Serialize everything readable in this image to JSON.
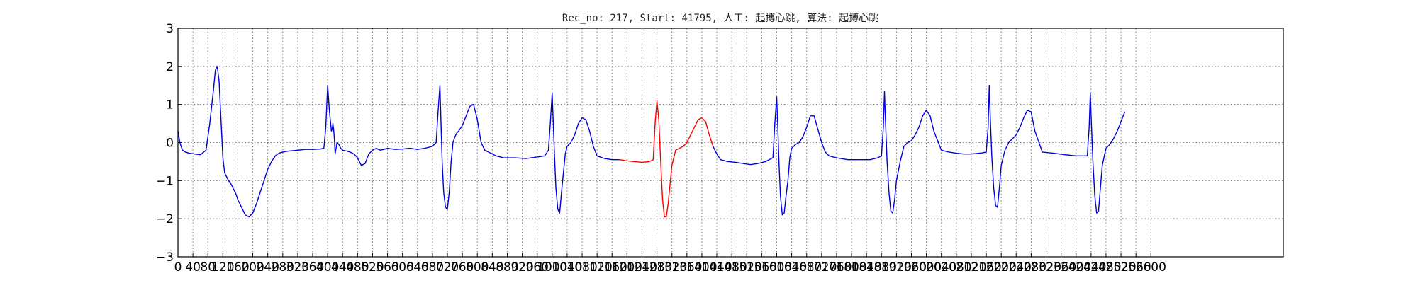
{
  "chart_data": {
    "type": "line",
    "title": "Rec_no: 217, Start: 41795, 人工: 起搏心跳, 算法: 起搏心跳",
    "xlabel": "",
    "ylabel": "",
    "xlim": [
      0,
      3000
    ],
    "ylim": [
      -3,
      3
    ],
    "x_ticks": [
      0,
      40,
      80,
      120,
      160,
      200,
      240,
      280,
      320,
      360,
      400,
      440,
      480,
      520,
      560,
      600,
      640,
      680,
      720,
      760,
      800,
      840,
      880,
      920,
      960,
      1000,
      1040,
      1080,
      1120,
      1160,
      1200,
      1240,
      1280,
      1320,
      1360,
      1400,
      1440,
      1480,
      1520,
      1560,
      1600,
      1640,
      1680,
      1720,
      1760,
      1800,
      1840,
      1880,
      1920,
      1960,
      2000,
      2040,
      2080,
      2120,
      2160,
      2200,
      2240,
      2280,
      2320,
      2360,
      2400,
      2440,
      2480,
      2520,
      2560,
      2600
    ],
    "y_ticks": [
      3,
      2,
      1,
      0,
      -1,
      -2,
      -3
    ],
    "grid": true,
    "series": [
      {
        "color": "#0000dd",
        "x": [
          0,
          5,
          12,
          20,
          30,
          45,
          60,
          75,
          85,
          95,
          100,
          105,
          110,
          115,
          120,
          125,
          130,
          135,
          140,
          145,
          150,
          155,
          160,
          170,
          180,
          190,
          200,
          210,
          220,
          230,
          240,
          250,
          260,
          270,
          280,
          290,
          300,
          320,
          340,
          360,
          380,
          390,
          395,
          400,
          405,
          410,
          412,
          414,
          416,
          418,
          420,
          425,
          430,
          435,
          440,
          450,
          460,
          470,
          480,
          490,
          500,
          510,
          520,
          530,
          540,
          550,
          560,
          580,
          600,
          620,
          640,
          660,
          680,
          690,
          695,
          700,
          703,
          706,
          710,
          715,
          720,
          725,
          730,
          735,
          740,
          745,
          750,
          760,
          770,
          780,
          790,
          800,
          810,
          820,
          830,
          840,
          850,
          870,
          900,
          930,
          960,
          980,
          990,
          995,
          1000,
          1003,
          1006,
          1010,
          1015,
          1020,
          1025,
          1030,
          1035,
          1040,
          1050,
          1060,
          1070,
          1080,
          1090,
          1100,
          1110,
          1120,
          1140,
          1160,
          1180
        ],
        "y": [
          0.3,
          0.0,
          -0.2,
          -0.25,
          -0.28,
          -0.3,
          -0.32,
          -0.2,
          0.5,
          1.4,
          1.9,
          2.0,
          1.6,
          0.6,
          -0.4,
          -0.8,
          -0.9,
          -1.0,
          -1.05,
          -1.15,
          -1.25,
          -1.35,
          -1.5,
          -1.7,
          -1.9,
          -1.95,
          -1.85,
          -1.6,
          -1.3,
          -1.0,
          -0.7,
          -0.5,
          -0.35,
          -0.28,
          -0.25,
          -0.23,
          -0.22,
          -0.2,
          -0.18,
          -0.18,
          -0.17,
          -0.15,
          0.4,
          1.5,
          0.8,
          0.3,
          0.35,
          0.5,
          0.35,
          0.1,
          -0.3,
          0.0,
          -0.05,
          -0.15,
          -0.2,
          -0.22,
          -0.25,
          -0.3,
          -0.4,
          -0.6,
          -0.55,
          -0.3,
          -0.2,
          -0.15,
          -0.2,
          -0.18,
          -0.15,
          -0.18,
          -0.17,
          -0.15,
          -0.18,
          -0.15,
          -0.1,
          0.0,
          0.8,
          1.5,
          0.5,
          -0.5,
          -1.3,
          -1.7,
          -1.75,
          -1.3,
          -0.5,
          0.0,
          0.15,
          0.25,
          0.3,
          0.45,
          0.7,
          0.95,
          1.0,
          0.6,
          0.0,
          -0.2,
          -0.25,
          -0.3,
          -0.35,
          -0.4,
          -0.4,
          -0.42,
          -0.38,
          -0.35,
          -0.2,
          0.5,
          1.3,
          0.5,
          -0.3,
          -1.2,
          -1.75,
          -1.85,
          -1.3,
          -0.8,
          -0.3,
          -0.1,
          0.0,
          0.2,
          0.5,
          0.65,
          0.6,
          0.3,
          -0.1,
          -0.35,
          -0.42,
          -0.45,
          -0.45
        ]
      },
      {
        "color": "#ff0000",
        "x": [
          1180,
          1200,
          1220,
          1240,
          1260,
          1270,
          1275,
          1280,
          1285,
          1290,
          1295,
          1300,
          1305,
          1310,
          1315,
          1320,
          1330,
          1340,
          1350,
          1360,
          1370,
          1380,
          1390,
          1400,
          1410,
          1420,
          1430
        ],
        "y": [
          -0.45,
          -0.48,
          -0.5,
          -0.52,
          -0.5,
          -0.45,
          0.5,
          1.1,
          0.6,
          -0.5,
          -1.5,
          -1.95,
          -1.95,
          -1.6,
          -1.1,
          -0.6,
          -0.2,
          -0.15,
          -0.1,
          0.0,
          0.2,
          0.4,
          0.6,
          0.65,
          0.55,
          0.2,
          -0.1
        ]
      },
      {
        "color": "#0000dd",
        "x": [
          1430,
          1440,
          1450,
          1470,
          1490,
          1510,
          1530,
          1550,
          1570,
          1590,
          1595,
          1600,
          1603,
          1606,
          1610,
          1615,
          1620,
          1625,
          1630,
          1635,
          1640,
          1650,
          1660,
          1670,
          1680,
          1690,
          1700,
          1710,
          1720,
          1730,
          1740,
          1760,
          1790,
          1820,
          1850,
          1870,
          1880,
          1885,
          1888,
          1891,
          1895,
          1900,
          1905,
          1910,
          1915,
          1920,
          1930,
          1940,
          1950,
          1960,
          1970,
          1980,
          1990,
          2000,
          2010,
          2020,
          2040,
          2060,
          2080,
          2100,
          2120,
          2150,
          2160,
          2165,
          2168,
          2171,
          2175,
          2180,
          2185,
          2190,
          2195,
          2200,
          2210,
          2220,
          2230,
          2240,
          2250,
          2260,
          2270,
          2280,
          2290,
          2310,
          2340,
          2370,
          2400,
          2420,
          2430,
          2435,
          2438,
          2441,
          2445,
          2450,
          2455,
          2460,
          2465,
          2470,
          2480,
          2490,
          2500,
          2510,
          2520,
          2530
        ],
        "y": [
          -0.1,
          -0.3,
          -0.45,
          -0.5,
          -0.52,
          -0.55,
          -0.58,
          -0.55,
          -0.5,
          -0.4,
          0.5,
          1.2,
          0.4,
          -0.5,
          -1.4,
          -1.9,
          -1.85,
          -1.4,
          -1.0,
          -0.4,
          -0.15,
          -0.05,
          0.0,
          0.15,
          0.4,
          0.7,
          0.7,
          0.35,
          0.0,
          -0.25,
          -0.35,
          -0.4,
          -0.45,
          -0.45,
          -0.45,
          -0.4,
          -0.35,
          0.4,
          1.35,
          0.5,
          -0.5,
          -1.3,
          -1.8,
          -1.85,
          -1.5,
          -1.0,
          -0.5,
          -0.1,
          0.0,
          0.05,
          0.2,
          0.4,
          0.7,
          0.85,
          0.7,
          0.3,
          -0.2,
          -0.25,
          -0.28,
          -0.3,
          -0.3,
          -0.27,
          -0.25,
          0.4,
          1.5,
          0.6,
          -0.4,
          -1.2,
          -1.65,
          -1.7,
          -1.2,
          -0.6,
          -0.2,
          0.0,
          0.1,
          0.2,
          0.4,
          0.65,
          0.85,
          0.8,
          0.3,
          -0.25,
          -0.28,
          -0.32,
          -0.35,
          -0.35,
          -0.35,
          0.4,
          1.3,
          0.5,
          -0.5,
          -1.4,
          -1.85,
          -1.8,
          -1.2,
          -0.6,
          -0.15,
          -0.05,
          0.1,
          0.3,
          0.55,
          0.8
        ]
      }
    ]
  }
}
